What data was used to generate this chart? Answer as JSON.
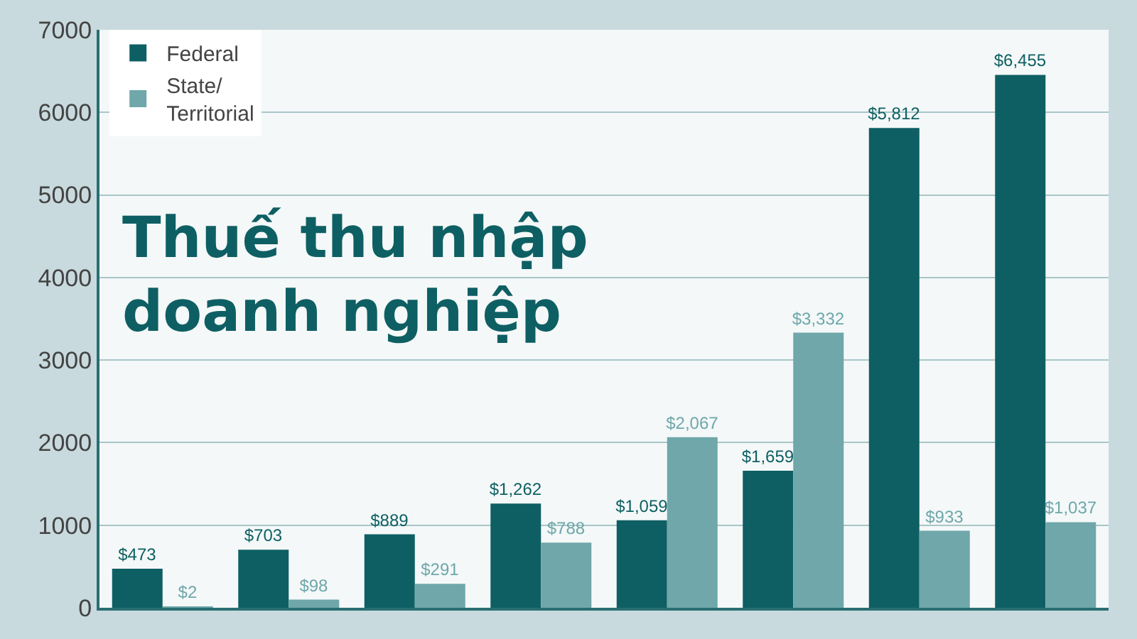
{
  "chart_data": {
    "type": "bar",
    "title": "Thuế thu nhập\ndoanh nghiệp",
    "categories": [
      null,
      null,
      null,
      null,
      null,
      null,
      null,
      null
    ],
    "series": [
      {
        "name": "Federal",
        "color": "#0e5f63",
        "values": [
          473,
          703,
          889,
          1262,
          1059,
          1659,
          5812,
          6455
        ],
        "value_labels": [
          "$473",
          "$703",
          "$889",
          "$1,262",
          "$1,059",
          "$1,659",
          "$5,812",
          "$6,455"
        ]
      },
      {
        "name": "State/\nTerritorial",
        "color": "#6fa7aa",
        "values": [
          2,
          98,
          291,
          788,
          2067,
          3332,
          933,
          1037
        ],
        "value_labels": [
          "$2",
          "$98",
          "$291",
          "$788",
          "$2,067",
          "$3,332",
          "$933",
          "$1,037"
        ]
      }
    ],
    "ylim": [
      0,
      7000
    ],
    "yticks": [
      0,
      1000,
      2000,
      3000,
      4000,
      5000,
      6000,
      7000
    ],
    "grid": "y",
    "legend": "top left",
    "tick_labels": "y"
  }
}
